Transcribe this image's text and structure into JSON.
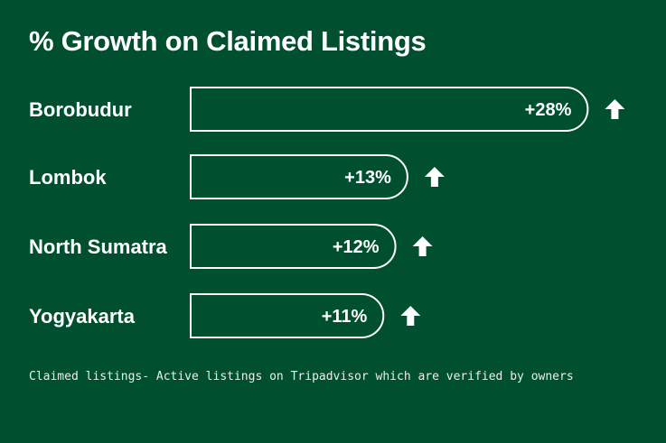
{
  "title": "% Growth on Claimed Listings",
  "footnote": "Claimed listings- Active listings on Tripadvisor which are verified by owners",
  "colors": {
    "background": "#00502f",
    "foreground": "#ffffff"
  },
  "chart_data": {
    "type": "bar",
    "orientation": "horizontal",
    "title": "% Growth on Claimed Listings",
    "categories": [
      "Borobudur",
      "Lombok",
      "North Sumatra",
      "Yogyakarta"
    ],
    "values": [
      28,
      13,
      12,
      11
    ],
    "value_labels": [
      "+28%",
      "+13%",
      "+12%",
      "+11%"
    ],
    "unit": "%",
    "trend": [
      "up",
      "up",
      "up",
      "up"
    ],
    "grid": false,
    "legend": false,
    "xlabel": "",
    "ylabel": ""
  }
}
